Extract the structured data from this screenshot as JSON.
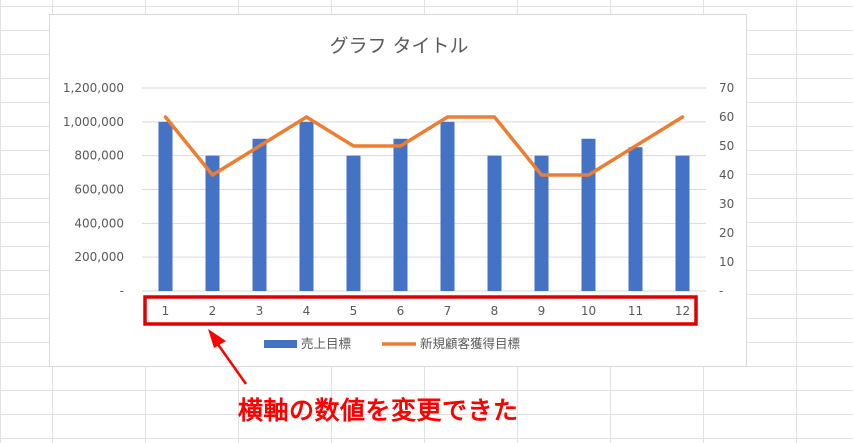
{
  "chart_data": {
    "type": "bar+line",
    "title": "グラフ タイトル",
    "categories": [
      "1",
      "2",
      "3",
      "4",
      "5",
      "6",
      "7",
      "8",
      "9",
      "10",
      "11",
      "12"
    ],
    "series": [
      {
        "name": "売上目標",
        "type": "bar",
        "axis": "left",
        "color": "#4472c4",
        "values": [
          1000000,
          800000,
          900000,
          1000000,
          800000,
          900000,
          1000000,
          800000,
          800000,
          900000,
          850000,
          800000
        ]
      },
      {
        "name": "新規顧客獲得目標",
        "type": "line",
        "axis": "right",
        "color": "#ed7d31",
        "values": [
          60,
          40,
          50,
          60,
          50,
          50,
          60,
          60,
          40,
          40,
          50,
          60
        ]
      }
    ],
    "y_left": {
      "ylim": [
        0,
        1200000
      ],
      "tick_labels": [
        "-",
        "200,000",
        "400,000",
        "600,000",
        "800,000",
        "1,000,000",
        "1,200,000"
      ]
    },
    "y_right": {
      "ylim": [
        0,
        70
      ],
      "tick_labels": [
        "-",
        "10",
        "20",
        "30",
        "40",
        "50",
        "60",
        "70"
      ]
    },
    "grid": true,
    "legend_position": "bottom"
  },
  "annotation": {
    "caption": "横軸の数値を変更できた",
    "highlight_color": "#e00000"
  }
}
